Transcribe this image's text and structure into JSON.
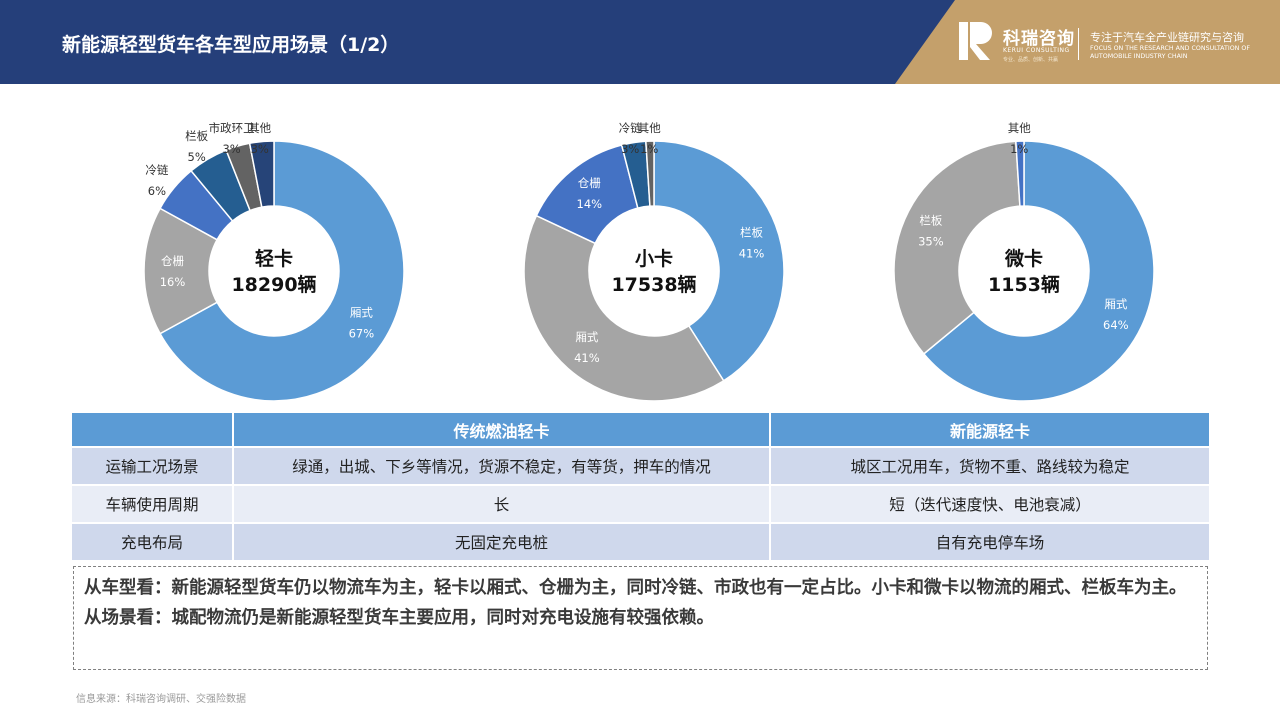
{
  "header": {
    "title": "新能源轻型货车各车型应用场景（1/2）",
    "brand_cn": "科瑞咨询",
    "brand_en": "KERUI CONSULTING",
    "brand_tiny": "专业、品质、创新、共赢",
    "slogan_cn": "专注于汽车全产业链研究与咨询",
    "slogan_en": "FOCUS ON THE RESEARCH AND CONSULTATION OF AUTOMOBILE INDUSTRY CHAIN",
    "band_color": "#253f7a",
    "accent_color": "#c4a06b"
  },
  "chart_data": [
    {
      "type": "pie",
      "donut": true,
      "center_name": "轻卡",
      "center_count": "18290辆",
      "slices": [
        {
          "label": "厢式",
          "value": 67,
          "display": "67%",
          "color": "#5b9bd5"
        },
        {
          "label": "仓栅",
          "value": 16,
          "display": "16%",
          "color": "#a5a5a5"
        },
        {
          "label": "冷链",
          "value": 6,
          "display": "6%",
          "color": "#4472c4"
        },
        {
          "label": "栏板",
          "value": 5,
          "display": "5%",
          "color": "#255e91"
        },
        {
          "label": "市政环卫",
          "value": 3,
          "display": "3%",
          "color": "#636363"
        },
        {
          "label": "其他",
          "value": 3,
          "display": "3%",
          "color": "#264478"
        }
      ]
    },
    {
      "type": "pie",
      "donut": true,
      "center_name": "小卡",
      "center_count": "17538辆",
      "slices": [
        {
          "label": "栏板",
          "value": 41,
          "display": "41%",
          "color": "#5b9bd5"
        },
        {
          "label": "厢式",
          "value": 41,
          "display": "41%",
          "color": "#a5a5a5"
        },
        {
          "label": "仓栅",
          "value": 14,
          "display": "14%",
          "color": "#4472c4"
        },
        {
          "label": "冷链",
          "value": 3,
          "display": "3%",
          "color": "#255e91"
        },
        {
          "label": "其他",
          "value": 1,
          "display": "1%",
          "color": "#636363"
        }
      ]
    },
    {
      "type": "pie",
      "donut": true,
      "center_name": "微卡",
      "center_count": "1153辆",
      "slices": [
        {
          "label": "厢式",
          "value": 64,
          "display": "64%",
          "color": "#5b9bd5"
        },
        {
          "label": "栏板",
          "value": 35,
          "display": "35%",
          "color": "#a5a5a5"
        },
        {
          "label": "其他",
          "value": 1,
          "display": "1%",
          "color": "#4472c4"
        }
      ]
    }
  ],
  "table": {
    "headers": [
      "",
      "传统燃油轻卡",
      "新能源轻卡"
    ],
    "rows": [
      [
        "运输工况场景",
        "绿通，出城、下乡等情况，货源不稳定，有等货，押车的情况",
        "城区工况用车，货物不重、路线较为稳定"
      ],
      [
        "车辆使用周期",
        "长",
        "短（迭代速度快、电池衰减）"
      ],
      [
        "充电布局",
        "无固定充电桩",
        "自有充电停车场"
      ]
    ]
  },
  "summary": {
    "line1": "从车型看：新能源轻型货车仍以物流车为主，轻卡以厢式、仓栅为主，同时冷链、市政也有一定占比。小卡和微卡以物流的厢式、栏板车为主。",
    "line2": "从场景看：城配物流仍是新能源轻型货车主要应用，同时对充电设施有较强依赖。"
  },
  "source": "信息来源：科瑞咨询调研、交强险数据"
}
